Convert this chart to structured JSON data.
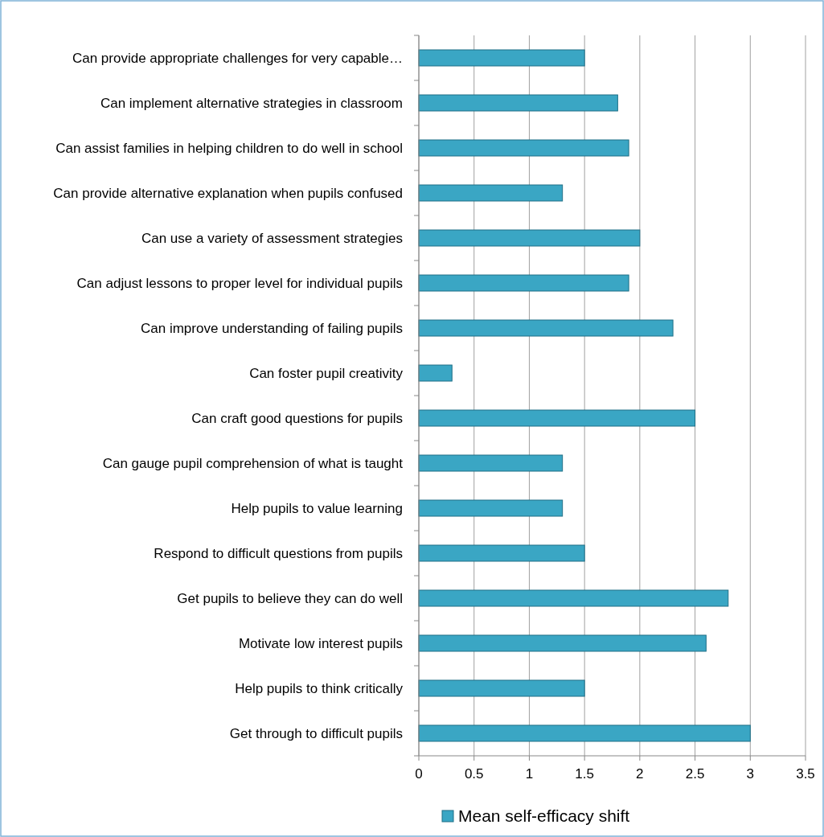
{
  "chart_data": {
    "type": "bar",
    "orientation": "horizontal",
    "categories": [
      "Can provide appropriate challenges for very capable…",
      "Can implement alternative strategies in classroom",
      "Can assist families in helping children to do well in school",
      "Can provide alternative explanation when pupils confused",
      "Can use a variety of assessment strategies",
      "Can adjust lessons to proper level for individual pupils",
      "Can improve understanding of failing pupils",
      "Can foster pupil creativity",
      "Can craft good questions for pupils",
      "Can gauge pupil comprehension of what is taught",
      "Help pupils to value learning ",
      "Respond to difficult questions from pupils",
      "Get pupils to believe they can do well",
      "Motivate low interest pupils",
      "Help pupils to think critically",
      "Get through to difficult pupils"
    ],
    "series": [
      {
        "name": "Mean self-efficacy shift",
        "color": "#3aa6c4",
        "values": [
          1.5,
          1.8,
          1.9,
          1.3,
          2.0,
          1.9,
          2.3,
          0.3,
          2.5,
          1.3,
          1.3,
          1.5,
          2.8,
          2.6,
          1.5,
          3.0
        ]
      }
    ],
    "xlim": [
      0,
      3.5
    ],
    "xticks": [
      0,
      0.5,
      1,
      1.5,
      2,
      2.5,
      3,
      3.5
    ],
    "grid": "x",
    "legend": "bottom"
  }
}
